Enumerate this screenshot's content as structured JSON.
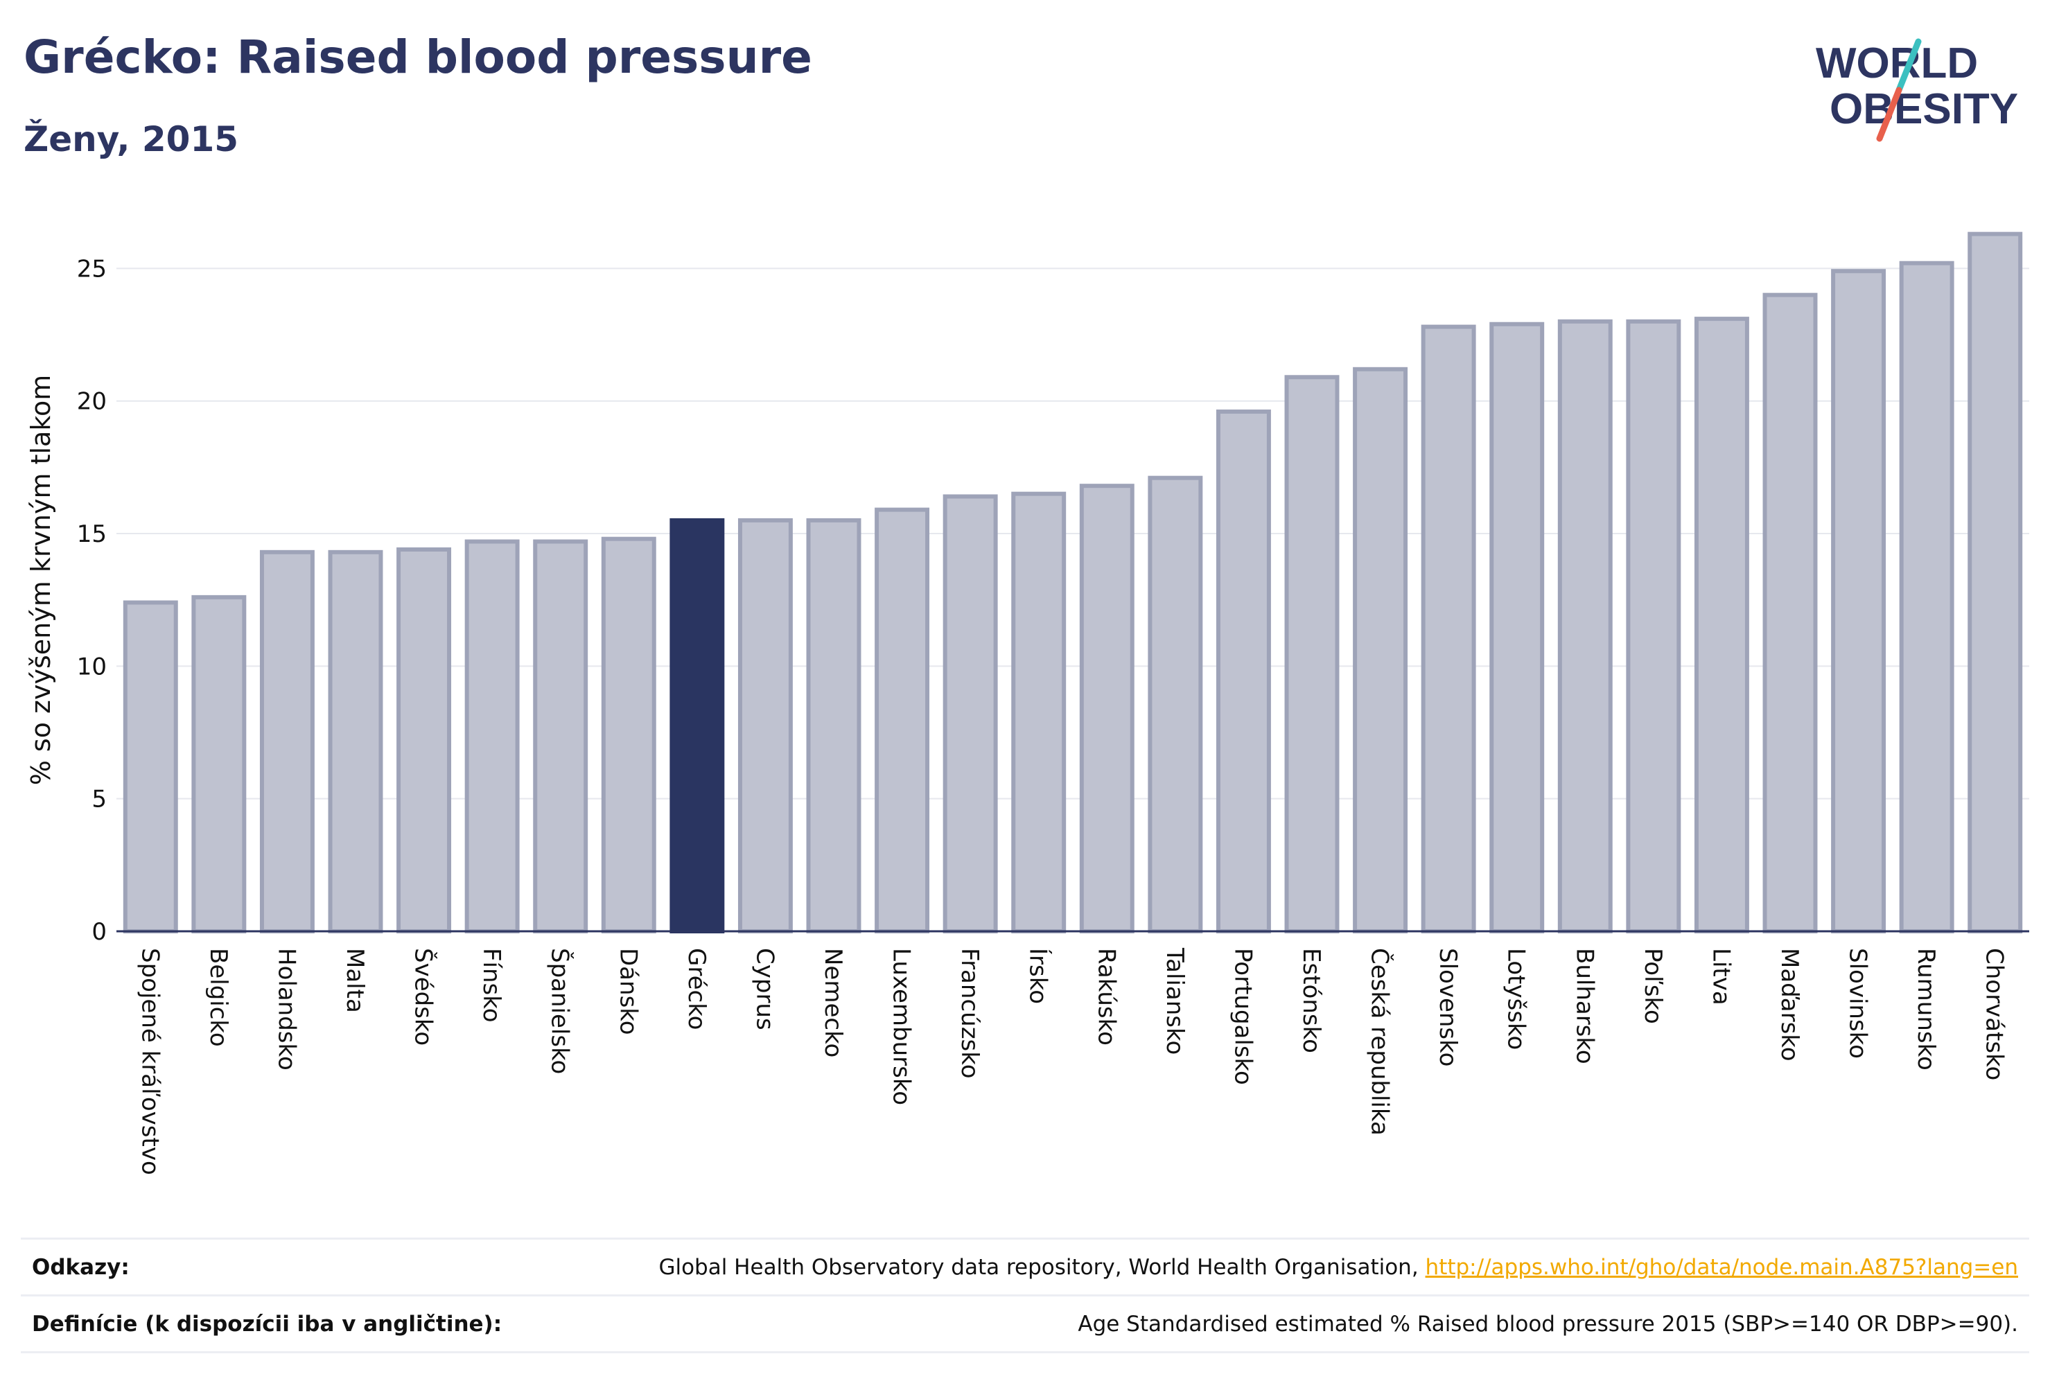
{
  "header": {
    "title": "Grécko: Raised blood pressure",
    "subtitle": "Ženy, 2015",
    "logo_text_1": "WORLD",
    "logo_text_2": "OBESITY"
  },
  "colors": {
    "navy": "#2d3561",
    "bar": "#bfc2d0",
    "bar_edge": "#9ea3b8",
    "highlight": "#2a3561",
    "link": "#f2a900",
    "logo_slash_top": "#3cc0c0",
    "logo_slash_bottom": "#e8604c"
  },
  "chart_data": {
    "type": "bar",
    "title": "Grécko: Raised blood pressure",
    "subtitle": "Ženy, 2015",
    "xlabel": "",
    "ylabel": "% so zvýšeným krvným tlakom",
    "ylim": [
      0,
      26.5
    ],
    "yticks": [
      0,
      5,
      10,
      15,
      20,
      25
    ],
    "grid": true,
    "highlight": "Grécko",
    "categories": [
      "Spojené kráľovstvo",
      "Belgicko",
      "Holandsko",
      "Malta",
      "Švédsko",
      "Fínsko",
      "Španielsko",
      "Dánsko",
      "Grécko",
      "Cyprus",
      "Nemecko",
      "Luxembursko",
      "Francúzsko",
      "Írsko",
      "Rakúsko",
      "Taliansko",
      "Portugalsko",
      "Estónsko",
      "Česká republika",
      "Slovensko",
      "Lotyšsko",
      "Bulharsko",
      "Poľsko",
      "Litva",
      "Maďarsko",
      "Slovinsko",
      "Rumunsko",
      "Chorvátsko"
    ],
    "values": [
      12.4,
      12.6,
      14.3,
      14.3,
      14.4,
      14.7,
      14.7,
      14.8,
      15.5,
      15.5,
      15.5,
      15.9,
      16.4,
      16.5,
      16.8,
      17.1,
      19.6,
      20.9,
      21.2,
      22.8,
      22.9,
      23.0,
      23.0,
      23.1,
      24.0,
      24.9,
      25.2,
      26.3
    ]
  },
  "references": {
    "sources_label": "Odkazy:",
    "sources_text": "Global Health Observatory data repository, World Health Organisation, ",
    "sources_link": "http://apps.who.int/gho/data/node.main.A875?lang=en",
    "definitions_label": "Definície (k dispozícii iba v angličtine):",
    "definitions_text": "Age Standardised estimated % Raised blood pressure 2015 (SBP>=140 OR DBP>=90)."
  }
}
